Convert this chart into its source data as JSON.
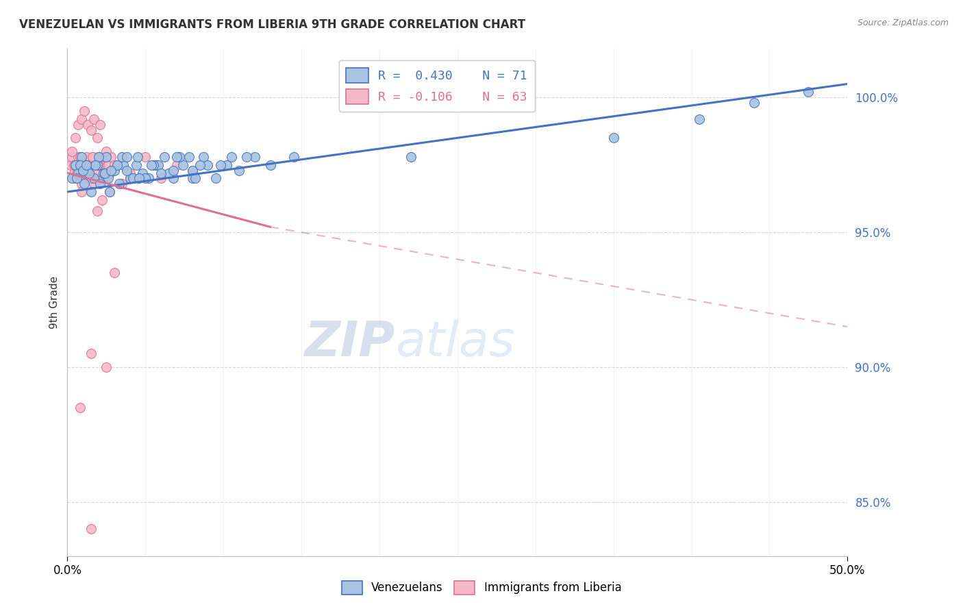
{
  "title": "VENEZUELAN VS IMMIGRANTS FROM LIBERIA 9TH GRADE CORRELATION CHART",
  "source_text": "Source: ZipAtlas.com",
  "ylabel": "9th Grade",
  "xlim": [
    0.0,
    50.0
  ],
  "ylim": [
    83.0,
    101.8
  ],
  "yticks": [
    85.0,
    90.0,
    95.0,
    100.0
  ],
  "ytick_labels": [
    "85.0%",
    "90.0%",
    "95.0%",
    "100.0%"
  ],
  "legend_labels_bottom": [
    "Venezuelans",
    "Immigrants from Liberia"
  ],
  "blue_scatter_x": [
    0.3,
    0.5,
    0.7,
    0.9,
    1.1,
    1.3,
    1.5,
    1.7,
    1.9,
    2.1,
    2.3,
    2.5,
    2.7,
    3.0,
    3.3,
    3.6,
    4.0,
    4.4,
    4.8,
    5.2,
    5.7,
    6.2,
    6.8,
    7.4,
    8.0,
    8.7,
    9.5,
    10.2,
    11.0,
    12.0,
    13.0,
    14.5,
    0.8,
    1.4,
    2.0,
    2.6,
    3.2,
    3.8,
    4.5,
    5.0,
    5.8,
    6.5,
    7.2,
    8.0,
    9.0,
    10.5,
    1.0,
    1.8,
    2.4,
    3.5,
    4.2,
    5.5,
    6.8,
    7.8,
    8.5,
    0.6,
    1.2,
    2.8,
    3.8,
    4.6,
    5.4,
    6.0,
    7.0,
    8.2,
    9.8,
    11.5,
    22.0,
    35.0,
    40.5,
    44.0,
    47.5
  ],
  "blue_scatter_y": [
    97.0,
    97.5,
    97.2,
    97.8,
    96.8,
    97.3,
    96.5,
    97.0,
    97.5,
    96.8,
    97.2,
    97.8,
    96.5,
    97.3,
    96.8,
    97.5,
    97.0,
    97.5,
    97.2,
    97.0,
    97.5,
    97.8,
    97.0,
    97.5,
    97.3,
    97.8,
    97.0,
    97.5,
    97.3,
    97.8,
    97.5,
    97.8,
    97.5,
    97.2,
    97.8,
    97.0,
    97.5,
    97.3,
    97.8,
    97.0,
    97.5,
    97.2,
    97.8,
    97.0,
    97.5,
    97.8,
    97.3,
    97.5,
    97.2,
    97.8,
    97.0,
    97.5,
    97.3,
    97.8,
    97.5,
    97.0,
    97.5,
    97.3,
    97.8,
    97.0,
    97.5,
    97.2,
    97.8,
    97.0,
    97.5,
    97.8,
    97.8,
    98.5,
    99.2,
    99.8,
    100.2
  ],
  "pink_scatter_x": [
    0.2,
    0.3,
    0.4,
    0.5,
    0.6,
    0.7,
    0.8,
    0.9,
    1.0,
    1.1,
    1.2,
    1.3,
    1.4,
    1.5,
    1.6,
    1.7,
    1.8,
    1.9,
    2.0,
    2.1,
    2.2,
    2.3,
    2.4,
    2.5,
    2.6,
    2.7,
    2.8,
    0.3,
    0.5,
    0.7,
    0.9,
    1.1,
    1.3,
    1.5,
    1.7,
    1.9,
    2.1,
    2.5,
    3.0,
    4.0,
    5.0,
    6.0,
    7.0,
    8.0,
    0.4,
    0.6,
    0.8,
    1.0,
    1.2,
    1.4,
    1.6,
    1.8,
    2.0,
    2.3,
    3.5,
    0.5,
    0.9,
    1.5,
    2.2,
    1.1,
    1.9,
    2.7,
    0.4
  ],
  "pink_scatter_y": [
    97.5,
    97.8,
    97.2,
    97.5,
    97.0,
    97.8,
    97.3,
    96.8,
    97.5,
    97.2,
    97.8,
    97.0,
    97.5,
    97.3,
    97.8,
    96.8,
    97.5,
    97.2,
    97.8,
    97.0,
    97.5,
    97.3,
    97.8,
    97.0,
    97.5,
    97.2,
    97.8,
    98.0,
    98.5,
    99.0,
    99.2,
    99.5,
    99.0,
    98.8,
    99.2,
    98.5,
    99.0,
    98.0,
    97.5,
    97.2,
    97.8,
    97.0,
    97.5,
    97.3,
    97.5,
    97.2,
    97.8,
    97.0,
    97.5,
    97.3,
    97.8,
    97.2,
    97.5,
    97.0,
    96.8,
    97.5,
    96.5,
    97.0,
    96.2,
    97.2,
    95.8,
    96.5,
    97.0
  ],
  "pink_scatter_extra_x": [
    1.5,
    2.5,
    0.8,
    1.5,
    3.0
  ],
  "pink_scatter_extra_y": [
    90.5,
    90.0,
    88.5,
    84.0,
    93.5
  ],
  "blue_line_x": [
    0.0,
    50.0
  ],
  "blue_line_y": [
    96.5,
    100.5
  ],
  "pink_solid_line_x": [
    0.0,
    13.0
  ],
  "pink_solid_line_y": [
    97.2,
    95.2
  ],
  "pink_dash_line_x": [
    13.0,
    50.0
  ],
  "pink_dash_line_y": [
    95.2,
    91.5
  ],
  "blue_color": "#a8c4e0",
  "blue_line_color": "#4472c4",
  "pink_color": "#f4b8c8",
  "pink_line_color": "#e07090",
  "watermark_zip": "ZIP",
  "watermark_atlas": "atlas",
  "background_color": "#ffffff",
  "grid_color": "#cccccc"
}
